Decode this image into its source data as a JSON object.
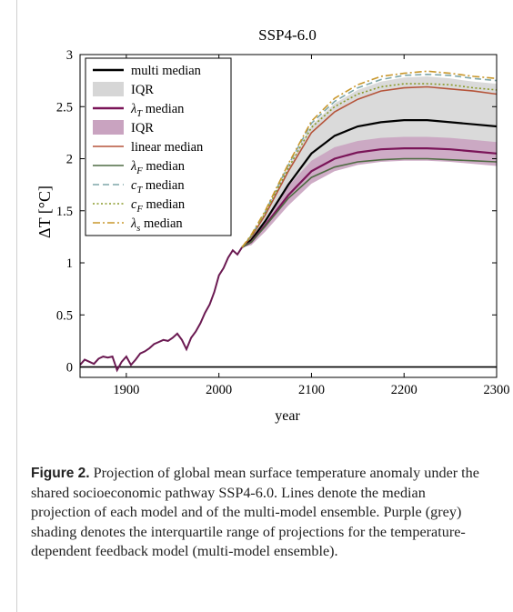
{
  "chart_data": {
    "type": "line",
    "title": "SSP4-6.0",
    "xlabel": "year",
    "ylabel": "ΔT [°C]",
    "xlim": [
      1850,
      2300
    ],
    "ylim": [
      -0.1,
      3
    ],
    "xticks": [
      1900,
      2000,
      2100,
      2200,
      2300
    ],
    "yticks": [
      0,
      0.5,
      1,
      1.5,
      2,
      2.5,
      3
    ],
    "grid": false,
    "legend_position": "top-left",
    "historical": {
      "x": [
        1850,
        1855,
        1860,
        1865,
        1870,
        1875,
        1880,
        1885,
        1890,
        1895,
        1900,
        1905,
        1910,
        1915,
        1920,
        1925,
        1930,
        1935,
        1940,
        1945,
        1950,
        1955,
        1960,
        1965,
        1970,
        1975,
        1980,
        1985,
        1990,
        1995,
        2000,
        2005,
        2010,
        2015,
        2020,
        2025
      ],
      "y": [
        0.02,
        0.07,
        0.05,
        0.03,
        0.08,
        0.1,
        0.09,
        0.1,
        -0.03,
        0.05,
        0.1,
        0.02,
        0.07,
        0.13,
        0.15,
        0.18,
        0.22,
        0.24,
        0.26,
        0.25,
        0.28,
        0.32,
        0.26,
        0.17,
        0.28,
        0.34,
        0.42,
        0.52,
        0.6,
        0.72,
        0.88,
        0.95,
        1.05,
        1.12,
        1.08,
        1.15
      ]
    },
    "future_x": [
      2025,
      2035,
      2050,
      2075,
      2100,
      2125,
      2150,
      2175,
      2200,
      2225,
      2250,
      2275,
      2300
    ],
    "series": [
      {
        "name": "multi median",
        "color": "#000000",
        "style": "solid",
        "y": [
          1.15,
          1.22,
          1.4,
          1.75,
          2.05,
          2.22,
          2.31,
          2.35,
          2.37,
          2.37,
          2.35,
          2.33,
          2.31
        ]
      },
      {
        "name": "λ_T median",
        "color": "#7a1458",
        "style": "solid",
        "y": [
          1.15,
          1.2,
          1.36,
          1.65,
          1.88,
          2.0,
          2.06,
          2.09,
          2.1,
          2.1,
          2.09,
          2.07,
          2.05
        ]
      },
      {
        "name": "linear median",
        "color": "#b5543a",
        "style": "solid",
        "y": [
          1.15,
          1.25,
          1.46,
          1.88,
          2.25,
          2.45,
          2.57,
          2.65,
          2.68,
          2.69,
          2.67,
          2.65,
          2.62
        ]
      },
      {
        "name": "λ_F median",
        "color": "#4f6b43",
        "style": "solid",
        "y": [
          1.15,
          1.2,
          1.35,
          1.62,
          1.82,
          1.92,
          1.97,
          1.99,
          2.0,
          2.0,
          1.99,
          1.98,
          1.97
        ]
      },
      {
        "name": "c_T median",
        "color": "#7fa6a8",
        "style": "dashed",
        "y": [
          1.15,
          1.26,
          1.49,
          1.94,
          2.34,
          2.55,
          2.68,
          2.76,
          2.8,
          2.81,
          2.8,
          2.77,
          2.75
        ]
      },
      {
        "name": "c_F median",
        "color": "#8a9a2a",
        "style": "dotted",
        "y": [
          1.15,
          1.26,
          1.48,
          1.91,
          2.3,
          2.5,
          2.62,
          2.69,
          2.72,
          2.72,
          2.71,
          2.68,
          2.66
        ]
      },
      {
        "name": "λ_s median",
        "color": "#c8972c",
        "style": "dashdot",
        "y": [
          1.15,
          1.27,
          1.5,
          1.95,
          2.36,
          2.58,
          2.71,
          2.79,
          2.82,
          2.84,
          2.82,
          2.79,
          2.77
        ]
      }
    ],
    "bands": [
      {
        "name": "IQR",
        "of": "multi",
        "color": "#d6d6d6",
        "lower": [
          1.15,
          1.2,
          1.36,
          1.65,
          1.88,
          2.0,
          2.06,
          2.09,
          2.1,
          2.1,
          2.09,
          2.07,
          2.05
        ],
        "upper": [
          1.15,
          1.26,
          1.48,
          1.92,
          2.32,
          2.53,
          2.66,
          2.74,
          2.78,
          2.79,
          2.77,
          2.74,
          2.72
        ]
      },
      {
        "name": "IQR",
        "of": "λ_T",
        "color": "#c9a3c0",
        "lower": [
          1.15,
          1.17,
          1.3,
          1.55,
          1.76,
          1.88,
          1.94,
          1.97,
          1.98,
          1.98,
          1.97,
          1.95,
          1.93
        ],
        "upper": [
          1.15,
          1.22,
          1.41,
          1.74,
          1.98,
          2.11,
          2.17,
          2.2,
          2.21,
          2.21,
          2.2,
          2.18,
          2.16
        ]
      }
    ]
  },
  "legend": [
    {
      "key": "multi",
      "type": "line",
      "color": "#000000",
      "style": "solid",
      "label": "multi median"
    },
    {
      "key": "iqr-multi",
      "type": "patch",
      "color": "#d6d6d6",
      "label": "IQR"
    },
    {
      "key": "lambdaT",
      "type": "line",
      "color": "#7a1458",
      "style": "solid",
      "label_sym": "λ",
      "label_sub": "T",
      "label_rest": " median"
    },
    {
      "key": "iqr-lambdaT",
      "type": "patch",
      "color": "#c9a3c0",
      "label": "IQR"
    },
    {
      "key": "linear",
      "type": "line",
      "color": "#b5543a",
      "style": "solid",
      "label": "linear median"
    },
    {
      "key": "lambdaF",
      "type": "line",
      "color": "#4f6b43",
      "style": "solid",
      "label_sym": "λ",
      "label_sub": "F",
      "label_rest": " median"
    },
    {
      "key": "cT",
      "type": "line",
      "color": "#7fa6a8",
      "style": "dashed",
      "label_sym": "c",
      "label_sub": "T",
      "label_rest": " median"
    },
    {
      "key": "cF",
      "type": "line",
      "color": "#8a9a2a",
      "style": "dotted",
      "label_sym": "c",
      "label_sub": "F",
      "label_rest": " median"
    },
    {
      "key": "lambdaS",
      "type": "line",
      "color": "#c8972c",
      "style": "dashdot",
      "label_sym": "λ",
      "label_sub": "s",
      "label_rest": " median"
    }
  ],
  "caption": {
    "label": "Figure 2.",
    "text": " Projection of global mean surface temperature anomaly under the shared socioeconomic pathway SSP4-6.0. Lines denote the median projection of each model and of the multi-model ensemble. Purple (grey) shading denotes the interquartile range of projections for the temperature-dependent feedback model (multi-model ensemble)."
  }
}
